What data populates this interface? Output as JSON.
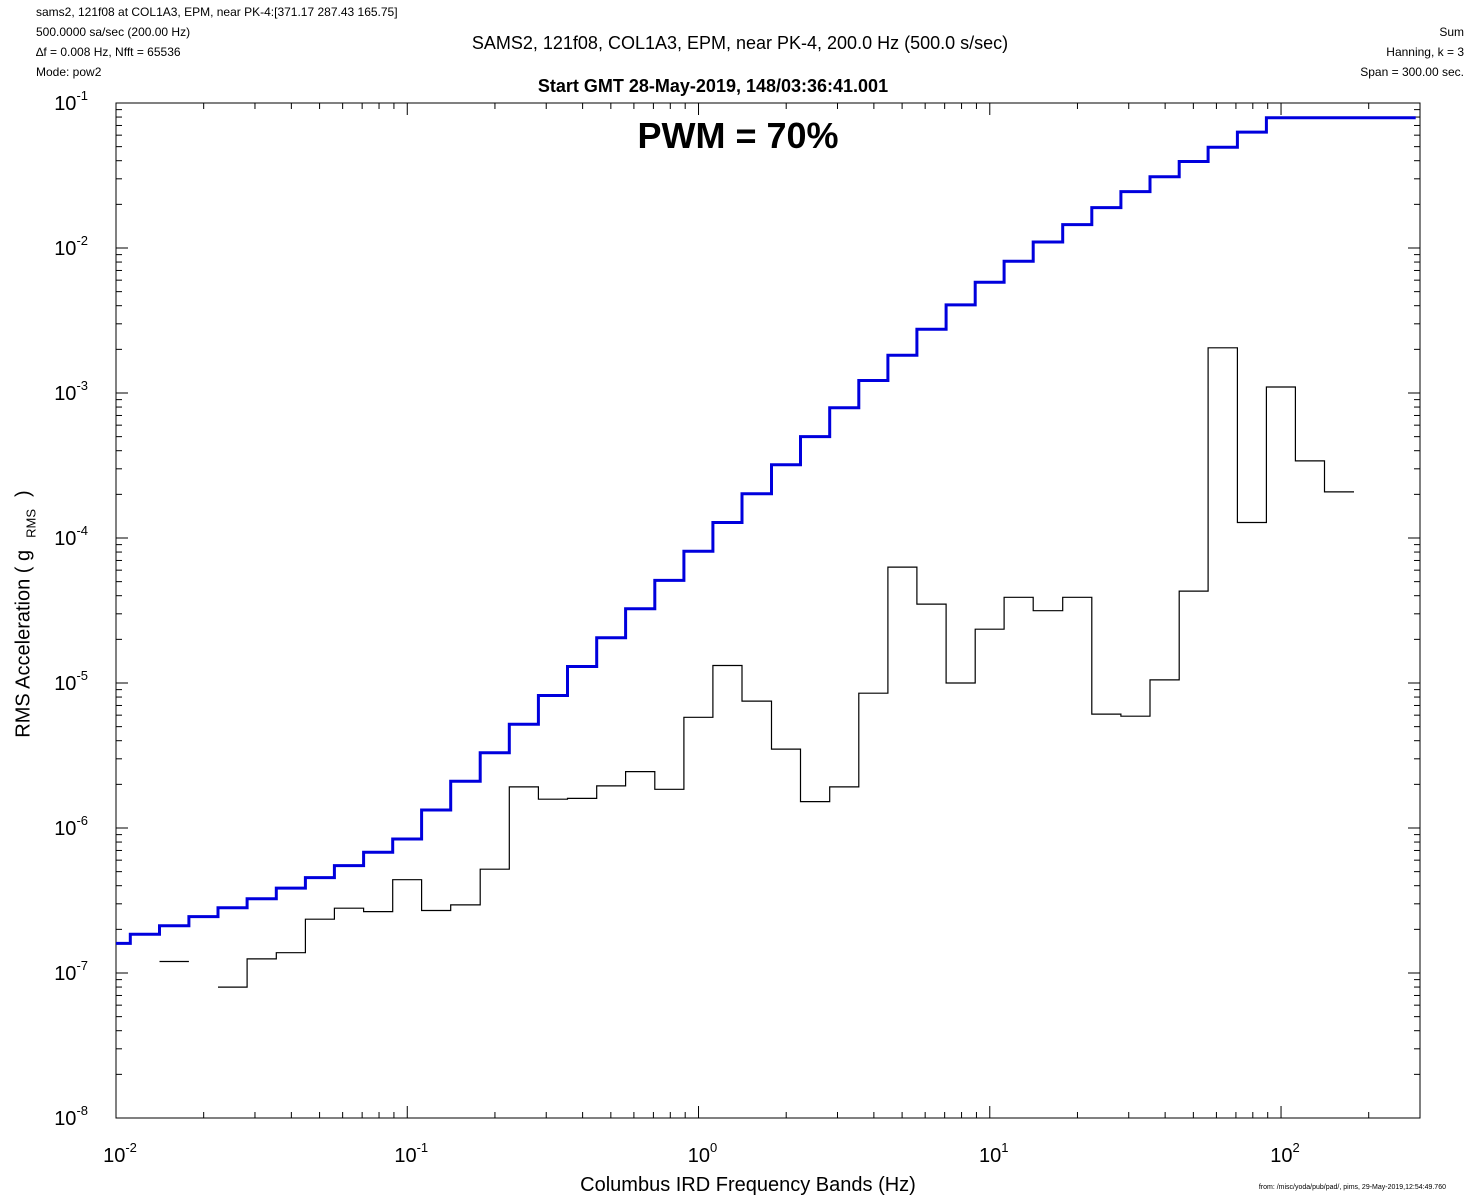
{
  "header": {
    "line1": "sams2, 121f08 at COL1A3, EPM, near PK-4:[371.17 287.43 165.75]",
    "line2": "500.0000 sa/sec (200.00 Hz)",
    "line3": "∆f = 0.008 Hz,  Nfft = 65536",
    "line4": "Mode: pow2",
    "right1": "Sum",
    "right2": "Hanning, k = 3",
    "right3": "Span = 300.00 sec."
  },
  "footer": "from: /misc/yoda/pub/pad/, pims, 29-May-2019,12:54:49.760",
  "chart_data": {
    "type": "line",
    "title": "SAMS2, 121f08, COL1A3, EPM, near PK-4, 200.0 Hz (500.0 s/sec)",
    "subtitle": "Start GMT 28-May-2019, 148/03:36:41.001",
    "annotation": "PWM = 70%",
    "xlabel": "Columbus IRD Frequency Bands (Hz)",
    "ylabel": "RMS Acceleration ( g",
    "ylabel_units": "RMS",
    "ylabel_close": ")",
    "xscale": "log",
    "yscale": "log",
    "xlim": [
      0.01,
      300
    ],
    "ylim": [
      1e-08,
      0.1
    ],
    "x_tick_labels": [
      "10^-2",
      "10^-1",
      "10^0",
      "10^1",
      "10^2"
    ],
    "y_tick_labels": [
      "10^-1",
      "10^-2",
      "10^-3",
      "10^-4",
      "10^-5",
      "10^-6",
      "10^-7",
      "10^-8"
    ],
    "grid": false,
    "legend": "none",
    "series": [
      {
        "color": "#0000dd",
        "style": "step",
        "bands": [
          {
            "x0": 0.01,
            "x1": 0.0112,
            "y": 1.6e-07
          },
          {
            "x0": 0.0112,
            "x1": 0.0141,
            "y": 1.85e-07
          },
          {
            "x0": 0.0141,
            "x1": 0.0178,
            "y": 2.12e-07
          },
          {
            "x0": 0.0178,
            "x1": 0.0224,
            "y": 2.45e-07
          },
          {
            "x0": 0.0224,
            "x1": 0.0282,
            "y": 2.82e-07
          },
          {
            "x0": 0.0282,
            "x1": 0.0355,
            "y": 3.25e-07
          },
          {
            "x0": 0.0355,
            "x1": 0.0447,
            "y": 3.85e-07
          },
          {
            "x0": 0.0447,
            "x1": 0.0562,
            "y": 4.55e-07
          },
          {
            "x0": 0.0562,
            "x1": 0.0708,
            "y": 5.5e-07
          },
          {
            "x0": 0.0708,
            "x1": 0.0891,
            "y": 6.8e-07
          },
          {
            "x0": 0.0891,
            "x1": 0.112,
            "y": 8.4e-07
          },
          {
            "x0": 0.112,
            "x1": 0.141,
            "y": 1.33e-06
          },
          {
            "x0": 0.141,
            "x1": 0.178,
            "y": 2.1e-06
          },
          {
            "x0": 0.178,
            "x1": 0.224,
            "y": 3.3e-06
          },
          {
            "x0": 0.224,
            "x1": 0.282,
            "y": 5.2e-06
          },
          {
            "x0": 0.282,
            "x1": 0.355,
            "y": 8.2e-06
          },
          {
            "x0": 0.355,
            "x1": 0.447,
            "y": 1.3e-05
          },
          {
            "x0": 0.447,
            "x1": 0.562,
            "y": 2.05e-05
          },
          {
            "x0": 0.562,
            "x1": 0.708,
            "y": 3.25e-05
          },
          {
            "x0": 0.708,
            "x1": 0.891,
            "y": 5.1e-05
          },
          {
            "x0": 0.891,
            "x1": 1.12,
            "y": 8.1e-05
          },
          {
            "x0": 1.12,
            "x1": 1.41,
            "y": 0.000128
          },
          {
            "x0": 1.41,
            "x1": 1.78,
            "y": 0.000202
          },
          {
            "x0": 1.78,
            "x1": 2.24,
            "y": 0.00032
          },
          {
            "x0": 2.24,
            "x1": 2.82,
            "y": 0.0005
          },
          {
            "x0": 2.82,
            "x1": 3.55,
            "y": 0.00079
          },
          {
            "x0": 3.55,
            "x1": 4.47,
            "y": 0.00122
          },
          {
            "x0": 4.47,
            "x1": 5.62,
            "y": 0.00182
          },
          {
            "x0": 5.62,
            "x1": 7.08,
            "y": 0.00275
          },
          {
            "x0": 7.08,
            "x1": 8.91,
            "y": 0.00405
          },
          {
            "x0": 8.91,
            "x1": 11.2,
            "y": 0.0058
          },
          {
            "x0": 11.2,
            "x1": 14.1,
            "y": 0.0081
          },
          {
            "x0": 14.1,
            "x1": 17.8,
            "y": 0.011
          },
          {
            "x0": 17.8,
            "x1": 22.4,
            "y": 0.0145
          },
          {
            "x0": 22.4,
            "x1": 28.2,
            "y": 0.019
          },
          {
            "x0": 28.2,
            "x1": 35.5,
            "y": 0.0245
          },
          {
            "x0": 35.5,
            "x1": 44.7,
            "y": 0.031
          },
          {
            "x0": 44.7,
            "x1": 56.2,
            "y": 0.0395
          },
          {
            "x0": 56.2,
            "x1": 70.8,
            "y": 0.0495
          },
          {
            "x0": 70.8,
            "x1": 89.1,
            "y": 0.063
          },
          {
            "x0": 89.1,
            "x1": 290,
            "y": 0.079
          }
        ]
      },
      {
        "color": "#000000",
        "style": "step",
        "bands": [
          {
            "x0": 0.0141,
            "x1": 0.0178,
            "y": 1.2e-07
          },
          {
            "x0": 0.0224,
            "x1": 0.0282,
            "y": 8e-08
          },
          {
            "x0": 0.0282,
            "x1": 0.0355,
            "y": 1.25e-07
          },
          {
            "x0": 0.0355,
            "x1": 0.0447,
            "y": 1.38e-07
          },
          {
            "x0": 0.0447,
            "x1": 0.0562,
            "y": 2.35e-07
          },
          {
            "x0": 0.0562,
            "x1": 0.0708,
            "y": 2.8e-07
          },
          {
            "x0": 0.0708,
            "x1": 0.0891,
            "y": 2.65e-07
          },
          {
            "x0": 0.0891,
            "x1": 0.112,
            "y": 4.4e-07
          },
          {
            "x0": 0.112,
            "x1": 0.141,
            "y": 2.7e-07
          },
          {
            "x0": 0.141,
            "x1": 0.178,
            "y": 2.95e-07
          },
          {
            "x0": 0.178,
            "x1": 0.224,
            "y": 5.2e-07
          },
          {
            "x0": 0.224,
            "x1": 0.282,
            "y": 1.92e-06
          },
          {
            "x0": 0.282,
            "x1": 0.355,
            "y": 1.58e-06
          },
          {
            "x0": 0.355,
            "x1": 0.447,
            "y": 1.6e-06
          },
          {
            "x0": 0.447,
            "x1": 0.562,
            "y": 1.95e-06
          },
          {
            "x0": 0.562,
            "x1": 0.708,
            "y": 2.45e-06
          },
          {
            "x0": 0.708,
            "x1": 0.891,
            "y": 1.85e-06
          },
          {
            "x0": 0.891,
            "x1": 1.12,
            "y": 5.8e-06
          },
          {
            "x0": 1.12,
            "x1": 1.41,
            "y": 1.32e-05
          },
          {
            "x0": 1.41,
            "x1": 1.78,
            "y": 7.5e-06
          },
          {
            "x0": 1.78,
            "x1": 2.24,
            "y": 3.5e-06
          },
          {
            "x0": 2.24,
            "x1": 2.82,
            "y": 1.52e-06
          },
          {
            "x0": 2.82,
            "x1": 3.55,
            "y": 1.92e-06
          },
          {
            "x0": 3.55,
            "x1": 4.47,
            "y": 8.5e-06
          },
          {
            "x0": 4.47,
            "x1": 5.62,
            "y": 6.3e-05
          },
          {
            "x0": 5.62,
            "x1": 7.08,
            "y": 3.5e-05
          },
          {
            "x0": 7.08,
            "x1": 8.91,
            "y": 1e-05
          },
          {
            "x0": 8.91,
            "x1": 11.2,
            "y": 2.35e-05
          },
          {
            "x0": 11.2,
            "x1": 14.1,
            "y": 3.9e-05
          },
          {
            "x0": 14.1,
            "x1": 17.8,
            "y": 3.15e-05
          },
          {
            "x0": 17.8,
            "x1": 22.4,
            "y": 3.9e-05
          },
          {
            "x0": 22.4,
            "x1": 28.2,
            "y": 6.1e-06
          },
          {
            "x0": 28.2,
            "x1": 35.5,
            "y": 5.9e-06
          },
          {
            "x0": 35.5,
            "x1": 44.7,
            "y": 1.05e-05
          },
          {
            "x0": 44.7,
            "x1": 56.2,
            "y": 4.3e-05
          },
          {
            "x0": 56.2,
            "x1": 70.8,
            "y": 0.00205
          },
          {
            "x0": 70.8,
            "x1": 89.1,
            "y": 0.000128
          },
          {
            "x0": 89.1,
            "x1": 112,
            "y": 0.0011
          },
          {
            "x0": 112,
            "x1": 141,
            "y": 0.00034
          },
          {
            "x0": 141,
            "x1": 178,
            "y": 0.000208
          }
        ]
      }
    ]
  }
}
